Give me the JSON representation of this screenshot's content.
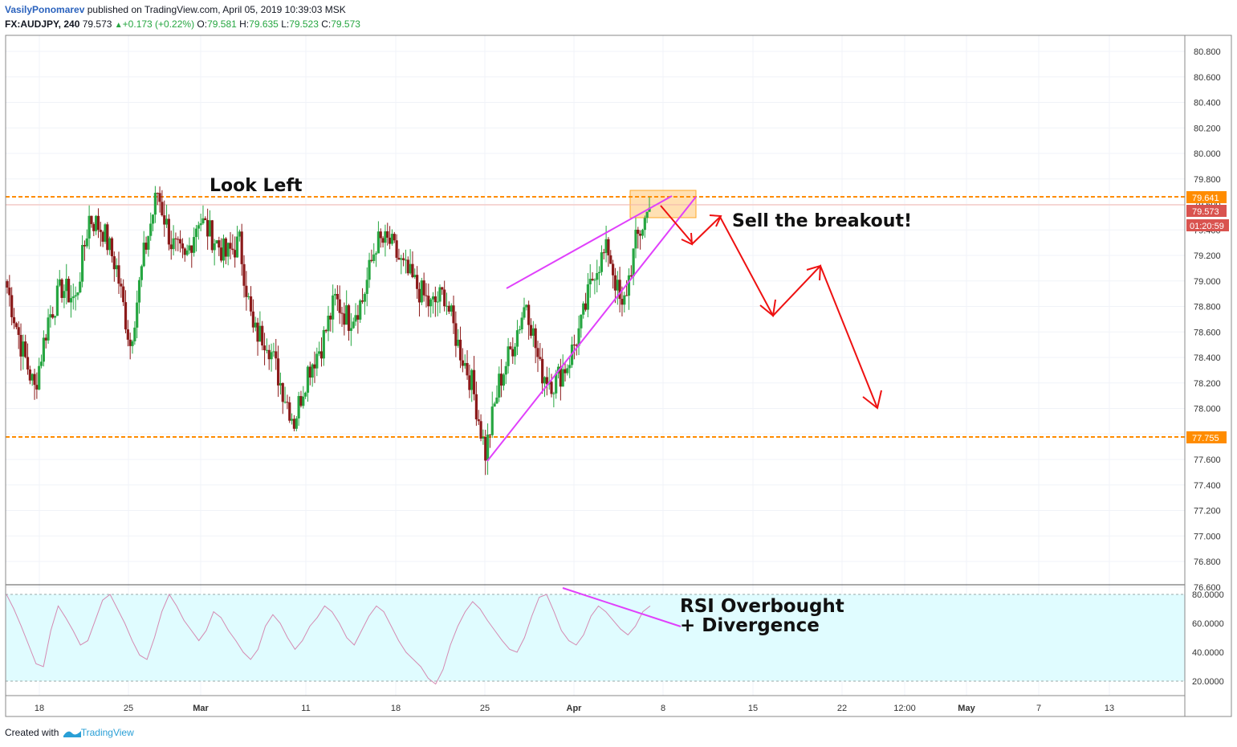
{
  "header": {
    "author": "VasilyPonomarev",
    "published": "published on TradingView.com, April 05, 2019 10:39:03 MSK",
    "symbol": "FX:AUDJPY, 240",
    "last": "79.573",
    "change_arrow": "▲",
    "change": "+0.173 (+0.22%)",
    "o_label": "O:",
    "o_value": "79.581",
    "h_label": "H:",
    "h_value": "79.635",
    "l_label": "L:",
    "l_value": "79.523",
    "c_label": "C:",
    "c_value": "79.573"
  },
  "footer": {
    "created_with": "Created with",
    "brand": "TradingView"
  },
  "colors": {
    "up": "#26a641",
    "down": "#8b1a1a",
    "level": "#ff8c00",
    "trend": "#e040fb",
    "projection": "#ee1111",
    "rsi_band": "#e0fcff",
    "rsi_line": "#d48ab2",
    "price_tag": "#d9534f",
    "level_tag": "#ff8c00",
    "zone": "#ffcc80"
  },
  "annotations": {
    "look_left": "Look Left",
    "sell_breakout": "Sell the breakout!",
    "rsi_note_1": "RSI Overbought",
    "rsi_note_2": "+ Divergence"
  },
  "price_tags": {
    "resistance": "79.641",
    "last": "79.573",
    "countdown": "01:20:59",
    "support": "77.755"
  },
  "chart_data": [
    {
      "type": "candlestick",
      "symbol": "FX:AUDJPY",
      "interval": "240",
      "y_axis_ticks": [
        "80.800",
        "80.600",
        "80.400",
        "80.200",
        "80.000",
        "79.800",
        "79.600",
        "79.400",
        "79.200",
        "79.000",
        "78.800",
        "78.600",
        "78.400",
        "78.200",
        "78.000",
        "77.800",
        "77.600",
        "77.400",
        "77.200",
        "77.000",
        "76.800",
        "76.600"
      ],
      "x_axis_ticks": [
        "18",
        "25",
        "Mar",
        "11",
        "18",
        "25",
        "Apr",
        "8",
        "15",
        "22",
        "12:00",
        "May",
        "7",
        "13"
      ],
      "ylim": [
        76.6,
        80.85
      ],
      "levels": [
        79.641,
        77.755
      ],
      "last_price": 79.573,
      "close_path": [
        {
          "x": "Feb 14",
          "y": 78.95
        },
        {
          "x": "Feb 15",
          "y": 78.5
        },
        {
          "x": "Feb 17",
          "y": 78.15
        },
        {
          "x": "Feb 18",
          "y": 78.7
        },
        {
          "x": "Feb 19",
          "y": 78.95
        },
        {
          "x": "Feb 20",
          "y": 78.85
        },
        {
          "x": "Feb 21",
          "y": 79.5
        },
        {
          "x": "Feb 22",
          "y": 79.4
        },
        {
          "x": "Feb 23",
          "y": 79.1
        },
        {
          "x": "Feb 24",
          "y": 78.5
        },
        {
          "x": "Feb 25",
          "y": 79.2
        },
        {
          "x": "Feb 26",
          "y": 79.7
        },
        {
          "x": "Feb 27",
          "y": 79.3
        },
        {
          "x": "Feb 28",
          "y": 79.15
        },
        {
          "x": "Mar 1",
          "y": 79.5
        },
        {
          "x": "Mar 3",
          "y": 79.35
        },
        {
          "x": "Mar 4",
          "y": 79.2
        },
        {
          "x": "Mar 5",
          "y": 79.3
        },
        {
          "x": "Mar 6",
          "y": 78.6
        },
        {
          "x": "Mar 7",
          "y": 78.55
        },
        {
          "x": "Mar 8",
          "y": 78.2
        },
        {
          "x": "Mar 9",
          "y": 77.9
        },
        {
          "x": "Mar 10",
          "y": 78.3
        },
        {
          "x": "Mar 11",
          "y": 78.5
        },
        {
          "x": "Mar 12",
          "y": 78.85
        },
        {
          "x": "Mar 13",
          "y": 78.7
        },
        {
          "x": "Mar 14",
          "y": 78.85
        },
        {
          "x": "Mar 15",
          "y": 79.3
        },
        {
          "x": "Mar 17",
          "y": 79.3
        },
        {
          "x": "Mar 18",
          "y": 79.1
        },
        {
          "x": "Mar 19",
          "y": 78.95
        },
        {
          "x": "Mar 20",
          "y": 78.8
        },
        {
          "x": "Mar 21",
          "y": 78.9
        },
        {
          "x": "Mar 22",
          "y": 78.5
        },
        {
          "x": "Mar 23",
          "y": 78.2
        },
        {
          "x": "Mar 24",
          "y": 77.65
        },
        {
          "x": "Mar 25",
          "y": 78.2
        },
        {
          "x": "Mar 26",
          "y": 78.5
        },
        {
          "x": "Mar 27",
          "y": 78.85
        },
        {
          "x": "Mar 28",
          "y": 78.3
        },
        {
          "x": "Mar 29",
          "y": 78.2
        },
        {
          "x": "Mar 30",
          "y": 78.35
        },
        {
          "x": "Mar 31",
          "y": 78.65
        },
        {
          "x": "Apr 1",
          "y": 79.1
        },
        {
          "x": "Apr 2",
          "y": 79.25
        },
        {
          "x": "Apr 3",
          "y": 78.75
        },
        {
          "x": "Apr 4",
          "y": 79.3
        },
        {
          "x": "Apr 5",
          "y": 79.573
        }
      ]
    },
    {
      "type": "line",
      "name": "RSI",
      "y_axis_ticks": [
        "80.0000",
        "60.0000",
        "40.0000",
        "20.0000"
      ],
      "ylim": [
        13,
        85
      ],
      "bands": [
        80,
        20
      ],
      "values": [
        80,
        70,
        58,
        45,
        32,
        30,
        55,
        72,
        64,
        55,
        45,
        48,
        62,
        76,
        80,
        70,
        60,
        48,
        38,
        35,
        50,
        68,
        80,
        72,
        62,
        55,
        48,
        55,
        68,
        64,
        55,
        48,
        40,
        35,
        42,
        58,
        66,
        60,
        50,
        42,
        48,
        58,
        64,
        72,
        68,
        60,
        50,
        45,
        55,
        65,
        72,
        68,
        58,
        48,
        40,
        35,
        30,
        22,
        18,
        28,
        45,
        58,
        68,
        75,
        70,
        62,
        55,
        48,
        42,
        40,
        50,
        65,
        78,
        80,
        68,
        55,
        48,
        45,
        52,
        65,
        72,
        68,
        62,
        56,
        52,
        58,
        68,
        72
      ]
    }
  ]
}
